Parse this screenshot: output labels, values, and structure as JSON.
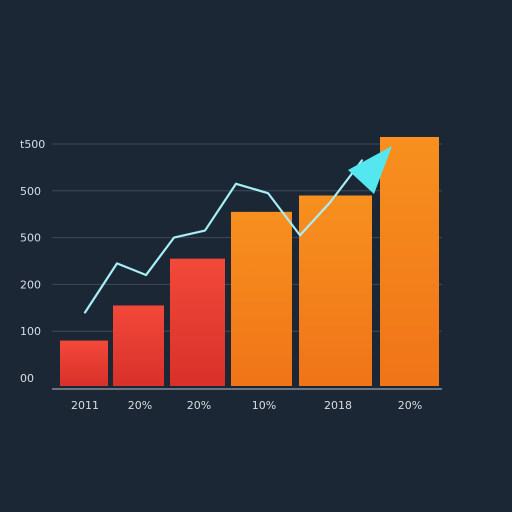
{
  "chart_data": {
    "type": "bar",
    "title": "",
    "xlabel": "",
    "ylabel": "",
    "y_tick_labels": [
      "00",
      "100",
      "200",
      "500",
      "500",
      "t500"
    ],
    "x_tick_labels": [
      "2011",
      "20%",
      "20%",
      "10%",
      "2018",
      "20%"
    ],
    "ylim": [
      0,
      5
    ],
    "bar_values": [
      0.8,
      1.55,
      2.55,
      3.55,
      3.9,
      5.15
    ],
    "trend_line": {
      "values": [
        1.4,
        2.45,
        2.2,
        3.0,
        3.15,
        4.15,
        3.95,
        3.05,
        3.75,
        4.65
      ]
    },
    "grid": true,
    "colors": {
      "background": "#1b2735",
      "bars": [
        "#ea3b2e",
        "#e83a2f",
        "#e1332a",
        "#f47a1a",
        "#f5861e",
        "#f07a1c"
      ],
      "trend_line": "#a8eef7",
      "arrow_head": "#55e7ef",
      "grid": "#3e4a58",
      "axis": "#9aa3ad",
      "tick_text": "#d9dde2"
    }
  }
}
